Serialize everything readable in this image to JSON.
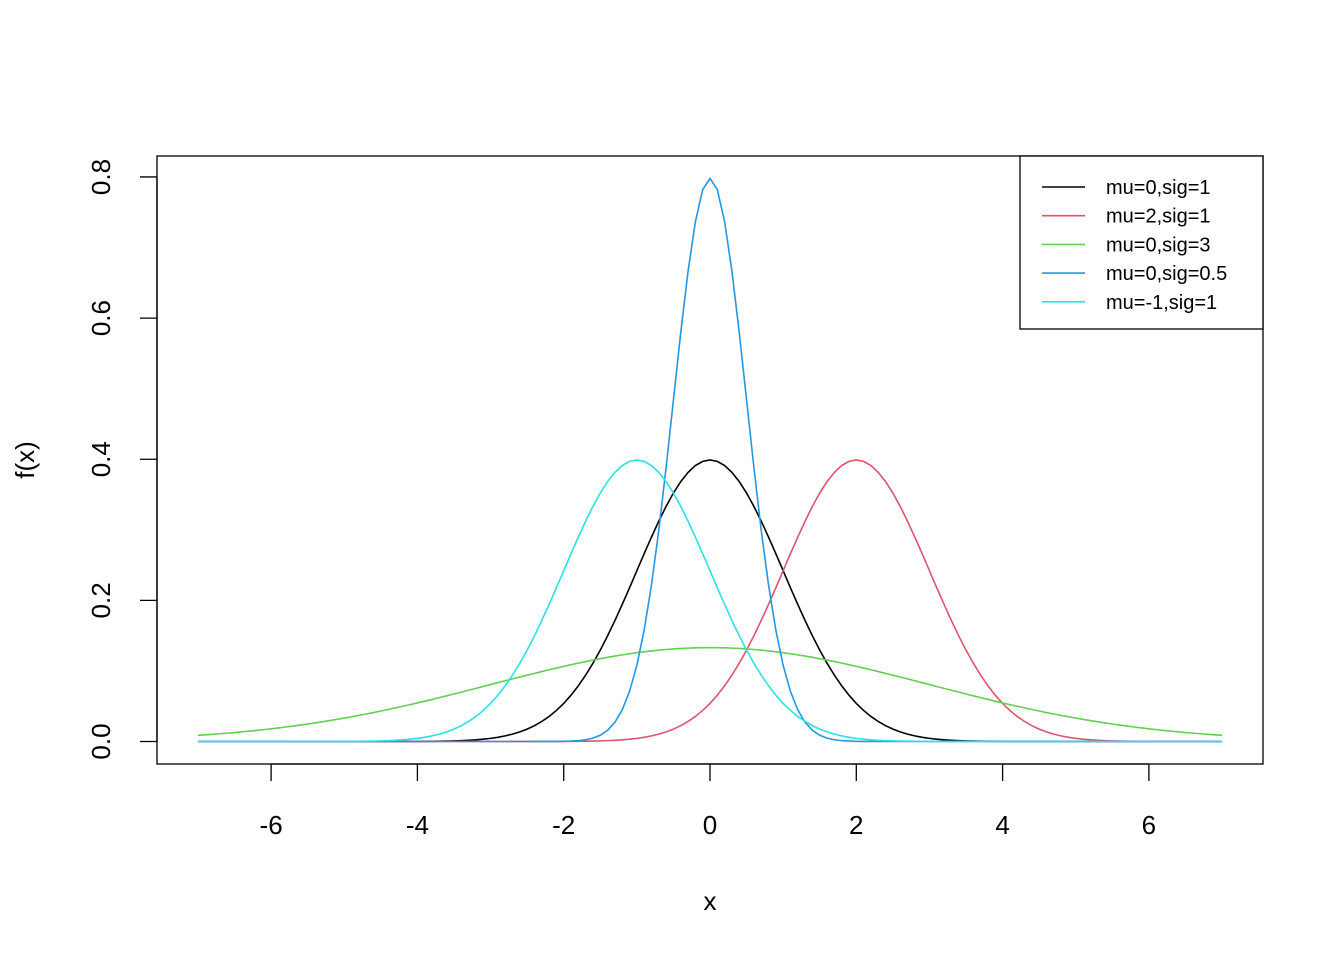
{
  "chart_data": {
    "type": "line",
    "title": "",
    "xlabel": "x",
    "ylabel": "f(x)",
    "xlim": [
      -7.56,
      7.56
    ],
    "ylim": [
      -0.0319,
      0.8297
    ],
    "x_ticks": [
      -6,
      -4,
      -2,
      0,
      2,
      4,
      6
    ],
    "x_tick_labels": [
      "-6",
      "-4",
      "-2",
      "0",
      "2",
      "4",
      "6"
    ],
    "y_ticks": [
      0.0,
      0.2,
      0.4,
      0.6,
      0.8
    ],
    "y_tick_labels": [
      "0.0",
      "0.2",
      "0.4",
      "0.6",
      "0.8"
    ],
    "grid": false,
    "legend_position": "top-right",
    "x": {
      "from": -7,
      "to": 7,
      "step": 0.1
    },
    "series": [
      {
        "name": "mu=0,sig=1",
        "mu": 0,
        "sigma": 1,
        "color": "#000000",
        "peak": 0.399
      },
      {
        "name": "mu=2,sig=1",
        "mu": 2,
        "sigma": 1,
        "color": "#DF536B",
        "peak": 0.399
      },
      {
        "name": "mu=0,sig=3",
        "mu": 0,
        "sigma": 3,
        "color": "#61D04F",
        "peak": 0.133
      },
      {
        "name": "mu=0,sig=0.5",
        "mu": 0,
        "sigma": 0.5,
        "color": "#2297E6",
        "peak": 0.798
      },
      {
        "name": "mu=-1,sig=1",
        "mu": -1,
        "sigma": 1,
        "color": "#28E2E5",
        "peak": 0.399
      }
    ]
  }
}
